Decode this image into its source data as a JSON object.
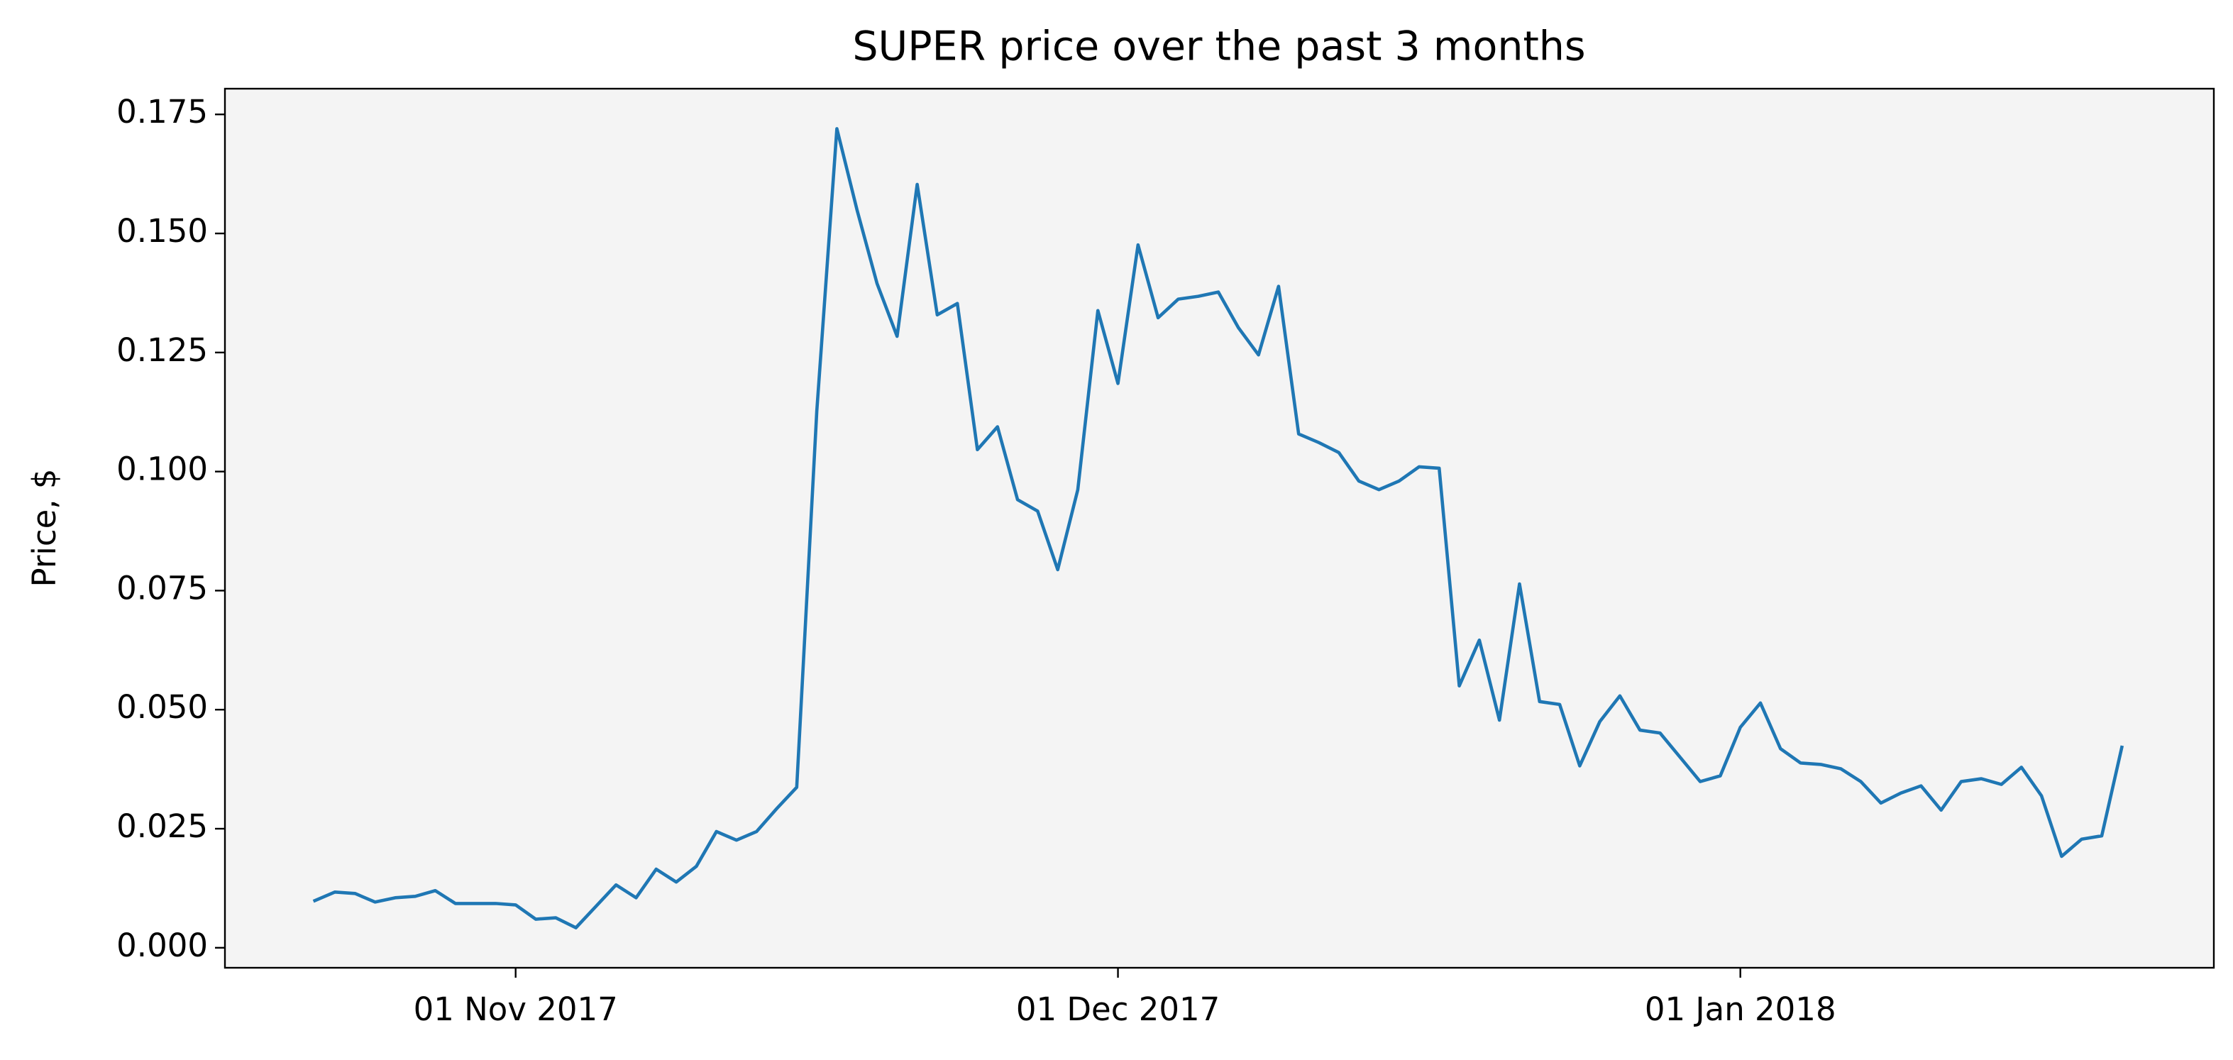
{
  "chart_data": {
    "type": "line",
    "title": "SUPER price over the past 3 months",
    "y_label": "Price, $",
    "x": [
      "2017-10-22",
      "2017-10-23",
      "2017-10-24",
      "2017-10-25",
      "2017-10-26",
      "2017-10-27",
      "2017-10-28",
      "2017-10-29",
      "2017-10-30",
      "2017-10-31",
      "2017-11-01",
      "2017-11-02",
      "2017-11-03",
      "2017-11-04",
      "2017-11-05",
      "2017-11-06",
      "2017-11-07",
      "2017-11-08",
      "2017-11-09",
      "2017-11-10",
      "2017-11-11",
      "2017-11-12",
      "2017-11-13",
      "2017-11-14",
      "2017-11-15",
      "2017-11-16",
      "2017-11-17",
      "2017-11-18",
      "2017-11-19",
      "2017-11-20",
      "2017-11-21",
      "2017-11-22",
      "2017-11-23",
      "2017-11-24",
      "2017-11-25",
      "2017-11-26",
      "2017-11-27",
      "2017-11-28",
      "2017-11-29",
      "2017-11-30",
      "2017-12-01",
      "2017-12-02",
      "2017-12-03",
      "2017-12-04",
      "2017-12-05",
      "2017-12-06",
      "2017-12-07",
      "2017-12-08",
      "2017-12-09",
      "2017-12-10",
      "2017-12-11",
      "2017-12-12",
      "2017-12-13",
      "2017-12-14",
      "2017-12-15",
      "2017-12-16",
      "2017-12-17",
      "2017-12-18",
      "2017-12-19",
      "2017-12-20",
      "2017-12-21",
      "2017-12-22",
      "2017-12-23",
      "2017-12-24",
      "2017-12-25",
      "2017-12-26",
      "2017-12-27",
      "2017-12-28",
      "2017-12-29",
      "2017-12-30",
      "2017-12-31",
      "2018-01-01",
      "2018-01-02",
      "2018-01-03",
      "2018-01-04",
      "2018-01-05",
      "2018-01-06",
      "2018-01-07",
      "2018-01-08",
      "2018-01-09",
      "2018-01-10",
      "2018-01-11",
      "2018-01-12",
      "2018-01-13",
      "2018-01-14",
      "2018-01-15",
      "2018-01-16",
      "2018-01-17",
      "2018-01-18",
      "2018-01-19",
      "2018-01-20"
    ],
    "series": [
      {
        "color": "#1f77b4",
        "values": [
          0.0099,
          0.0117,
          0.0114,
          0.0096,
          0.0105,
          0.0108,
          0.012,
          0.0093,
          0.0093,
          0.0093,
          0.009,
          0.006,
          0.0063,
          0.0042,
          0.0087,
          0.0132,
          0.0105,
          0.0165,
          0.0138,
          0.0171,
          0.0244,
          0.0226,
          0.0244,
          0.0292,
          0.0337,
          0.1127,
          0.172,
          0.155,
          0.1395,
          0.1284,
          0.1603,
          0.1329,
          0.1353,
          0.1046,
          0.1094,
          0.0941,
          0.0917,
          0.0794,
          0.0962,
          0.1338,
          0.1185,
          0.1476,
          0.1323,
          0.1362,
          0.1368,
          0.1377,
          0.1302,
          0.1245,
          0.1389,
          0.1079,
          0.1061,
          0.104,
          0.098,
          0.0962,
          0.098,
          0.101,
          0.1007,
          0.055,
          0.0646,
          0.0478,
          0.0764,
          0.0517,
          0.0511,
          0.0382,
          0.0475,
          0.0529,
          0.0457,
          0.0451,
          0.04,
          0.0349,
          0.0361,
          0.0463,
          0.0514,
          0.0418,
          0.0388,
          0.0385,
          0.0376,
          0.0349,
          0.0304,
          0.0325,
          0.034,
          0.0289,
          0.0349,
          0.0355,
          0.0343,
          0.0379,
          0.0319,
          0.0192,
          0.0228,
          0.0235,
          0.0421
        ]
      }
    ],
    "xlim": [
      "2017-10-17T12:30Z",
      "2018-01-24T14:00Z"
    ],
    "xticks": [
      {
        "value": "2017-11-01",
        "label": "01 Nov 2017"
      },
      {
        "value": "2017-12-01",
        "label": "01 Dec 2017"
      },
      {
        "value": "2018-01-01",
        "label": "01 Jan 2018"
      }
    ],
    "ylim": [
      -0.0042,
      0.1804
    ],
    "yticks": [
      {
        "value": 0,
        "label": "0.000"
      },
      {
        "value": 0.025,
        "label": "0.025"
      },
      {
        "value": 0.05,
        "label": "0.050"
      },
      {
        "value": 0.075,
        "label": "0.075"
      },
      {
        "value": 0.1,
        "label": "0.100"
      },
      {
        "value": 0.125,
        "label": "0.125"
      },
      {
        "value": 0.15,
        "label": "0.150"
      },
      {
        "value": 0.175,
        "label": "0.175"
      }
    ],
    "plot_background": "#f4f4f4"
  }
}
